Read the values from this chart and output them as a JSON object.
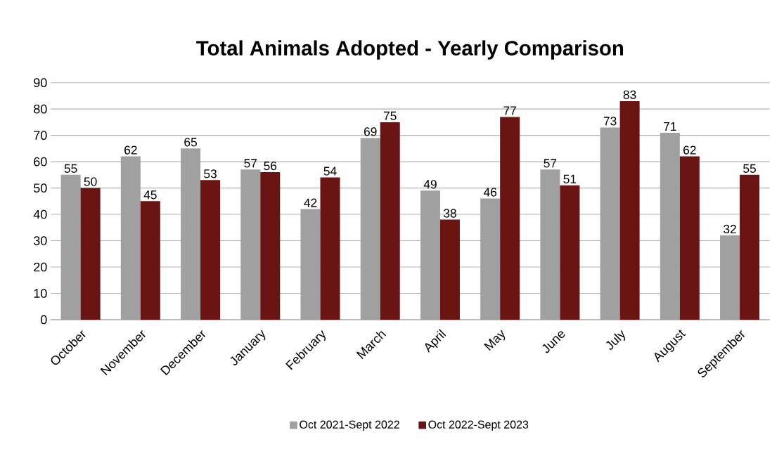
{
  "chart_data": {
    "type": "bar",
    "title": "Total Animals Adopted - Yearly Comparison",
    "categories": [
      "October",
      "November",
      "December",
      "January",
      "February",
      "March",
      "April",
      "May",
      "June",
      "July",
      "August",
      "September"
    ],
    "series": [
      {
        "name": "Oct 2021-Sept 2022",
        "color": "#a0a0a0",
        "values": [
          55,
          62,
          65,
          57,
          42,
          69,
          49,
          46,
          57,
          73,
          71,
          32
        ]
      },
      {
        "name": "Oct 2022-Sept 2023",
        "color": "#6b1414",
        "values": [
          50,
          45,
          53,
          56,
          54,
          75,
          38,
          77,
          51,
          83,
          62,
          55
        ]
      }
    ],
    "ylim": [
      0,
      90
    ],
    "yticks": [
      0,
      10,
      20,
      30,
      40,
      50,
      60,
      70,
      80,
      90
    ],
    "grid": "y",
    "legend": "bottom",
    "data_labels": true
  }
}
